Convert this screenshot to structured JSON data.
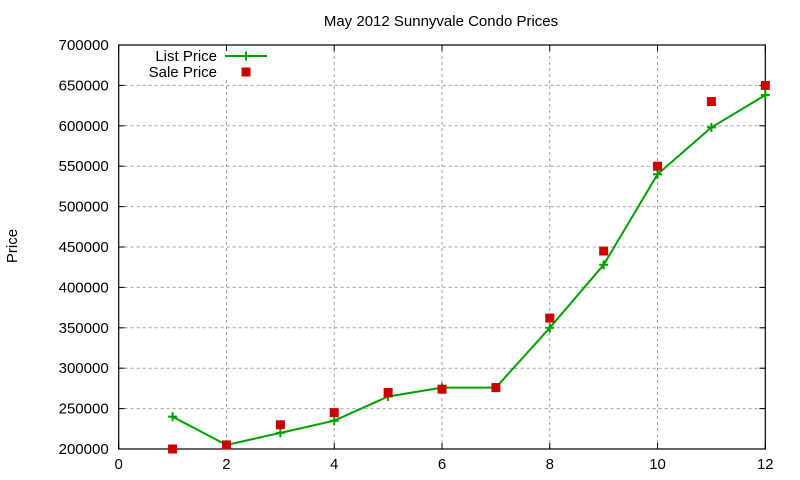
{
  "chart_data": {
    "type": "line",
    "title": "May 2012 Sunnyvale Condo Prices",
    "xlabel": "",
    "ylabel": "Price",
    "xlim": [
      0,
      12
    ],
    "ylim": [
      200000,
      700000
    ],
    "x_ticks": [
      0,
      2,
      4,
      6,
      8,
      10,
      12
    ],
    "y_ticks": [
      200000,
      250000,
      300000,
      350000,
      400000,
      450000,
      500000,
      550000,
      600000,
      650000,
      700000
    ],
    "grid": true,
    "legend_position": "top-left",
    "x": [
      1,
      2,
      3,
      4,
      5,
      6,
      7,
      8,
      9,
      10,
      11,
      12
    ],
    "series": [
      {
        "name": "List Price",
        "style": "linespoints",
        "marker": "plus",
        "color": "#00a000",
        "values": [
          240000,
          205000,
          220000,
          235000,
          265000,
          276000,
          276000,
          350000,
          428000,
          540000,
          598000,
          638000
        ]
      },
      {
        "name": "Sale Price",
        "style": "points",
        "marker": "square",
        "color": "#cc0000",
        "values": [
          200000,
          205000,
          230000,
          245000,
          270000,
          274000,
          276000,
          362000,
          445000,
          550000,
          630000,
          650000
        ]
      }
    ]
  }
}
